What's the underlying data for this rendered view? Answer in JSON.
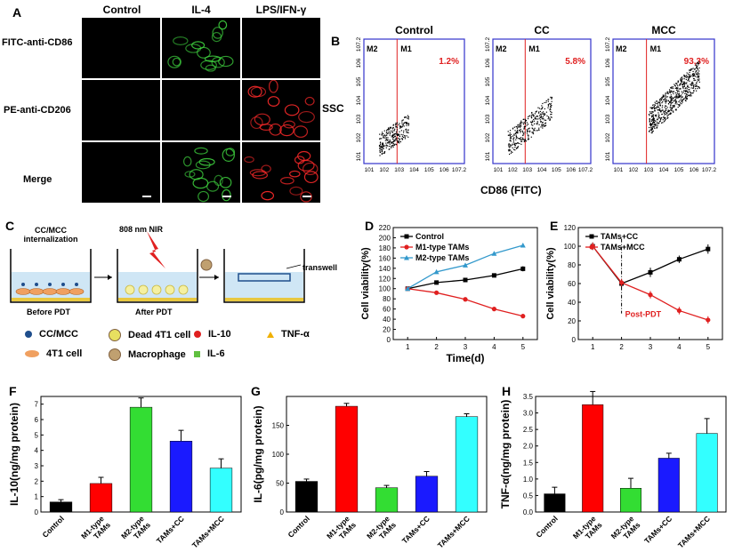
{
  "panel_labels": {
    "A": "A",
    "B": "B",
    "C": "C",
    "D": "D",
    "E": "E",
    "F": "F",
    "G": "G",
    "H": "H"
  },
  "panelA": {
    "columns": [
      "Control",
      "IL-4",
      "LPS/IFN-γ"
    ],
    "rows": [
      "FITC-anti-CD86",
      "PE-anti-CD206",
      "Merge"
    ]
  },
  "panelB": {
    "titles": [
      "Control",
      "CC",
      "MCC"
    ],
    "gates": [
      "M2",
      "M1"
    ],
    "percents": [
      "1.2%",
      "5.8%",
      "93,3%"
    ],
    "ylabel": "SSC",
    "xlabel": "CD86 (FITC)",
    "tick_exps": [
      "10",
      "10",
      "10",
      "10",
      "10",
      "10",
      "10"
    ],
    "tick_sup": [
      "1",
      "2",
      "3",
      "4",
      "5",
      "6",
      "7.2"
    ]
  },
  "panelC": {
    "step1": "CC/MCC\ninternalization",
    "step2": "808 nm NIR",
    "transwell": "transwell",
    "before": "Before PDT",
    "after": "After PDT",
    "legend": [
      {
        "label": "CC/MCC",
        "icon": "blue-dot",
        "color": "#1f4e8c"
      },
      {
        "label": "Dead 4T1 cell",
        "icon": "dead-cell",
        "color": "#e8e060"
      },
      {
        "label": "IL-10",
        "icon": "red-dot",
        "color": "#e02020"
      },
      {
        "label": "TNF-α",
        "icon": "yellow-triangle",
        "color": "#f0b000"
      },
      {
        "label": "4T1 cell",
        "icon": "cell",
        "color": "#f0a060"
      },
      {
        "label": "Macrophage",
        "icon": "macrophage",
        "color": "#c0a070"
      },
      {
        "label": "IL-6",
        "icon": "green-square",
        "color": "#60c040"
      }
    ]
  },
  "chart_data": [
    {
      "panel": "D",
      "type": "line",
      "x": [
        1,
        2,
        3,
        4,
        5
      ],
      "xlabel": "Time(d)",
      "ylabel": "Cell viability(%)",
      "xlim": [
        0.5,
        5.5
      ],
      "ylim": [
        0,
        220
      ],
      "yticks": [
        0,
        20,
        40,
        60,
        80,
        100,
        120,
        140,
        160,
        180,
        200,
        220
      ],
      "series": [
        {
          "name": "Control",
          "color": "#000000",
          "marker": "square",
          "values": [
            100,
            112,
            117,
            126,
            139
          ],
          "err": [
            3,
            4,
            4,
            3,
            5
          ]
        },
        {
          "name": "M1-type TAMs",
          "color": "#e02020",
          "marker": "circle",
          "values": [
            100,
            92,
            79,
            60,
            46
          ],
          "err": [
            3,
            3,
            3,
            3,
            4
          ]
        },
        {
          "name": "M2-type TAMs",
          "color": "#3399cc",
          "marker": "triangle",
          "values": [
            100,
            133,
            146,
            169,
            185
          ],
          "err": [
            3,
            4,
            4,
            4,
            4
          ]
        }
      ]
    },
    {
      "panel": "E",
      "type": "line",
      "x": [
        1,
        2,
        3,
        4,
        5
      ],
      "xlabel": "",
      "ylabel": "Cell viability(%)",
      "xlim": [
        0.5,
        5.5
      ],
      "ylim": [
        0,
        120
      ],
      "yticks": [
        0,
        20,
        40,
        60,
        80,
        100,
        120
      ],
      "annotation": "Post-PDT",
      "series": [
        {
          "name": "TAMs+CC",
          "color": "#000000",
          "marker": "square",
          "values": [
            100,
            60,
            72,
            86,
            97
          ],
          "err": [
            4,
            4,
            5,
            4,
            5
          ]
        },
        {
          "name": "TAMs+MCC",
          "color": "#e02020",
          "marker": "circle",
          "values": [
            100,
            61,
            48,
            31,
            21
          ],
          "err": [
            4,
            4,
            4,
            4,
            4
          ]
        }
      ]
    },
    {
      "panel": "F",
      "type": "bar",
      "ylabel": "IL-10(ng/mg protein)",
      "categories": [
        "Control",
        "M1-type\nTAMs",
        "M2-type\nTAMs",
        "TAMs+CC",
        "TAMs+MCC"
      ],
      "values": [
        0.65,
        1.85,
        6.8,
        4.6,
        2.85
      ],
      "err": [
        0.15,
        0.4,
        0.6,
        0.7,
        0.6
      ],
      "colors": [
        "#000000",
        "#ff0000",
        "#33dd33",
        "#1a1aff",
        "#33ffff"
      ],
      "ylim": [
        0,
        7.5
      ],
      "yticks": [
        0,
        1,
        2,
        3,
        4,
        5,
        6,
        7
      ]
    },
    {
      "panel": "G",
      "type": "bar",
      "ylabel": "IL-6(pg/mg protein)",
      "categories": [
        "Control",
        "M1-type\nTAMs",
        "M2-type\nTAMs",
        "TAMs+CC",
        "TAMs+MCC"
      ],
      "values": [
        53,
        183,
        42,
        62,
        165
      ],
      "err": [
        4,
        5,
        4,
        8,
        5
      ],
      "colors": [
        "#000000",
        "#ff0000",
        "#33dd33",
        "#1a1aff",
        "#33ffff"
      ],
      "ylim": [
        0,
        200
      ],
      "yticks": [
        0,
        50,
        100,
        150
      ]
    },
    {
      "panel": "H",
      "type": "bar",
      "ylabel": "TNF-α(ng/mg protein)",
      "categories": [
        "Control",
        "M1-type\nTAMs",
        "M2-type\nTAMs",
        "TAMs+CC",
        "TAMs+MCC"
      ],
      "values": [
        0.55,
        3.25,
        0.72,
        1.63,
        2.38
      ],
      "err": [
        0.2,
        0.4,
        0.3,
        0.15,
        0.45
      ],
      "colors": [
        "#000000",
        "#ff0000",
        "#33dd33",
        "#1a1aff",
        "#33ffff"
      ],
      "ylim": [
        0,
        3.5
      ],
      "yticks": [
        0.0,
        0.5,
        1.0,
        1.5,
        2.0,
        2.5,
        3.0,
        3.5
      ]
    }
  ]
}
